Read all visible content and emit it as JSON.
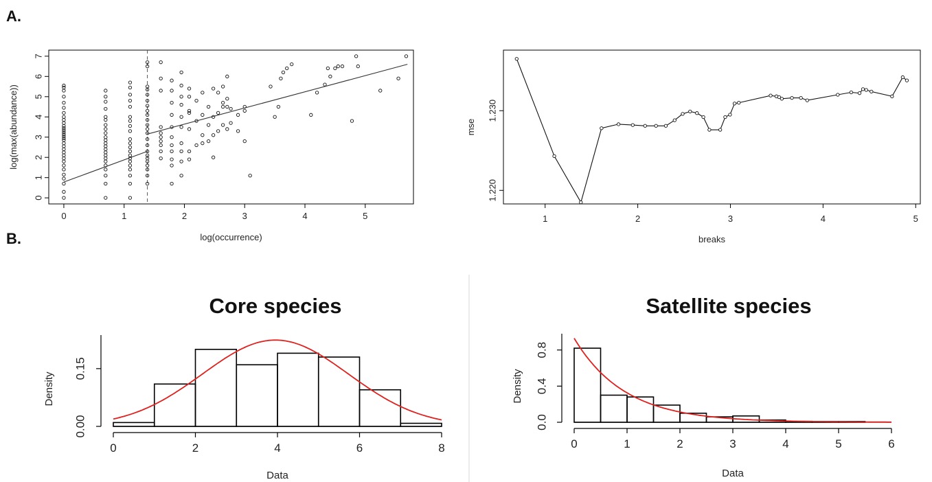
{
  "figure": {
    "label_a": "A.",
    "label_b": "B."
  },
  "chart_data": [
    {
      "id": "scatter",
      "type": "scatter",
      "title": "",
      "xlabel": "log(occurrence)",
      "ylabel": "log(max(abundance))",
      "xlim": [
        -0.25,
        5.8
      ],
      "ylim": [
        -0.3,
        7.3
      ],
      "xticks": [
        0,
        1,
        2,
        3,
        4,
        5
      ],
      "yticks": [
        0,
        1,
        2,
        3,
        4,
        5,
        6,
        7
      ],
      "breakpoint": 1.386,
      "fit_left": {
        "x": [
          0,
          1.386
        ],
        "y": [
          0.78,
          2.3
        ]
      },
      "fit_right": {
        "x": [
          1.386,
          5.7
        ],
        "y": [
          3.15,
          6.6
        ]
      },
      "points": [
        [
          0,
          0
        ],
        [
          0,
          0.3
        ],
        [
          0,
          0.7
        ],
        [
          0,
          0.95
        ],
        [
          0,
          1.15
        ],
        [
          0,
          1.4
        ],
        [
          0,
          1.6
        ],
        [
          0,
          1.8
        ],
        [
          0,
          1.95
        ],
        [
          0,
          2.1
        ],
        [
          0,
          2.25
        ],
        [
          0,
          2.4
        ],
        [
          0,
          2.55
        ],
        [
          0,
          2.7
        ],
        [
          0,
          2.85
        ],
        [
          0,
          2.95
        ],
        [
          0,
          3.05
        ],
        [
          0,
          3.15
        ],
        [
          0,
          3.25
        ],
        [
          0,
          3.35
        ],
        [
          0,
          3.45
        ],
        [
          0,
          3.55
        ],
        [
          0,
          3.7
        ],
        [
          0,
          3.85
        ],
        [
          0,
          4.0
        ],
        [
          0,
          4.2
        ],
        [
          0,
          4.45
        ],
        [
          0,
          4.7
        ],
        [
          0,
          5.0
        ],
        [
          0,
          5.3
        ],
        [
          0,
          5.45
        ],
        [
          0,
          5.55
        ],
        [
          0.693,
          0
        ],
        [
          0.693,
          0.7
        ],
        [
          0.693,
          1.1
        ],
        [
          0.693,
          1.4
        ],
        [
          0.693,
          1.6
        ],
        [
          0.693,
          1.8
        ],
        [
          0.693,
          1.95
        ],
        [
          0.693,
          2.1
        ],
        [
          0.693,
          2.25
        ],
        [
          0.693,
          2.4
        ],
        [
          0.693,
          2.55
        ],
        [
          0.693,
          2.7
        ],
        [
          0.693,
          2.85
        ],
        [
          0.693,
          3.0
        ],
        [
          0.693,
          3.2
        ],
        [
          0.693,
          3.4
        ],
        [
          0.693,
          3.6
        ],
        [
          0.693,
          3.85
        ],
        [
          0.693,
          4.0
        ],
        [
          0.693,
          4.4
        ],
        [
          0.693,
          4.75
        ],
        [
          0.693,
          5.0
        ],
        [
          0.693,
          5.3
        ],
        [
          1.099,
          0
        ],
        [
          1.099,
          0.7
        ],
        [
          1.099,
          1.1
        ],
        [
          1.099,
          1.4
        ],
        [
          1.099,
          1.6
        ],
        [
          1.099,
          1.8
        ],
        [
          1.099,
          1.95
        ],
        [
          1.099,
          2.1
        ],
        [
          1.099,
          2.3
        ],
        [
          1.099,
          2.5
        ],
        [
          1.099,
          2.7
        ],
        [
          1.099,
          2.9
        ],
        [
          1.099,
          3.3
        ],
        [
          1.099,
          3.55
        ],
        [
          1.099,
          3.8
        ],
        [
          1.099,
          4.0
        ],
        [
          1.099,
          4.5
        ],
        [
          1.099,
          4.8
        ],
        [
          1.099,
          5.1
        ],
        [
          1.099,
          5.45
        ],
        [
          1.099,
          5.7
        ],
        [
          1.386,
          0.7
        ],
        [
          1.386,
          1.1
        ],
        [
          1.386,
          1.4
        ],
        [
          1.386,
          1.6
        ],
        [
          1.386,
          1.8
        ],
        [
          1.386,
          1.95
        ],
        [
          1.386,
          2.1
        ],
        [
          1.386,
          2.3
        ],
        [
          1.386,
          2.6
        ],
        [
          1.386,
          2.9
        ],
        [
          1.386,
          3.2
        ],
        [
          1.386,
          3.4
        ],
        [
          1.386,
          3.6
        ],
        [
          1.386,
          3.85
        ],
        [
          1.386,
          4.1
        ],
        [
          1.386,
          4.3
        ],
        [
          1.386,
          4.55
        ],
        [
          1.386,
          4.8
        ],
        [
          1.386,
          5.1
        ],
        [
          1.386,
          5.35
        ],
        [
          1.386,
          5.5
        ],
        [
          1.386,
          6.5
        ],
        [
          1.386,
          6.7
        ],
        [
          1.609,
          1.95
        ],
        [
          1.609,
          2.3
        ],
        [
          1.609,
          2.6
        ],
        [
          1.609,
          2.8
        ],
        [
          1.609,
          3.0
        ],
        [
          1.609,
          3.2
        ],
        [
          1.609,
          3.5
        ],
        [
          1.609,
          5.3
        ],
        [
          1.609,
          5.9
        ],
        [
          1.609,
          6.7
        ],
        [
          1.79,
          0.7
        ],
        [
          1.79,
          1.6
        ],
        [
          1.79,
          1.9
        ],
        [
          1.79,
          2.3
        ],
        [
          1.79,
          2.6
        ],
        [
          1.79,
          3.0
        ],
        [
          1.79,
          3.5
        ],
        [
          1.79,
          4.1
        ],
        [
          1.79,
          4.7
        ],
        [
          1.79,
          5.3
        ],
        [
          1.79,
          5.8
        ],
        [
          1.95,
          1.1
        ],
        [
          1.95,
          1.8
        ],
        [
          1.95,
          2.3
        ],
        [
          1.95,
          2.7
        ],
        [
          1.95,
          3.5
        ],
        [
          1.95,
          4.0
        ],
        [
          1.95,
          4.6
        ],
        [
          1.95,
          5.0
        ],
        [
          1.95,
          5.55
        ],
        [
          1.95,
          6.2
        ],
        [
          2.08,
          1.9
        ],
        [
          2.08,
          2.3
        ],
        [
          2.08,
          3.4
        ],
        [
          2.08,
          4.2
        ],
        [
          2.08,
          4.3
        ],
        [
          2.08,
          5.0
        ],
        [
          2.08,
          5.4
        ],
        [
          2.2,
          2.6
        ],
        [
          2.2,
          3.8
        ],
        [
          2.2,
          4.8
        ],
        [
          2.3,
          2.7
        ],
        [
          2.3,
          3.1
        ],
        [
          2.3,
          4.1
        ],
        [
          2.3,
          5.2
        ],
        [
          2.4,
          2.8
        ],
        [
          2.4,
          3.6
        ],
        [
          2.4,
          4.5
        ],
        [
          2.48,
          2.0
        ],
        [
          2.48,
          3.1
        ],
        [
          2.48,
          4.0
        ],
        [
          2.48,
          5.4
        ],
        [
          2.56,
          3.3
        ],
        [
          2.56,
          4.2
        ],
        [
          2.56,
          5.2
        ],
        [
          2.64,
          3.6
        ],
        [
          2.64,
          4.5
        ],
        [
          2.64,
          4.7
        ],
        [
          2.64,
          5.5
        ],
        [
          2.71,
          3.4
        ],
        [
          2.71,
          4.5
        ],
        [
          2.71,
          4.9
        ],
        [
          2.71,
          6.0
        ],
        [
          2.77,
          3.7
        ],
        [
          2.77,
          4.4
        ],
        [
          2.89,
          3.3
        ],
        [
          2.89,
          4.1
        ],
        [
          3.0,
          2.8
        ],
        [
          3.0,
          4.3
        ],
        [
          3.0,
          4.5
        ],
        [
          3.09,
          1.1
        ],
        [
          3.43,
          5.5
        ],
        [
          3.5,
          4.0
        ],
        [
          3.56,
          4.5
        ],
        [
          3.6,
          5.9
        ],
        [
          3.64,
          6.2
        ],
        [
          3.7,
          6.4
        ],
        [
          3.78,
          6.6
        ],
        [
          4.1,
          4.1
        ],
        [
          4.2,
          5.2
        ],
        [
          4.33,
          5.6
        ],
        [
          4.38,
          6.4
        ],
        [
          4.42,
          6.0
        ],
        [
          4.5,
          6.4
        ],
        [
          4.55,
          6.5
        ],
        [
          4.62,
          6.5
        ],
        [
          4.78,
          3.8
        ],
        [
          4.85,
          7.0
        ],
        [
          4.88,
          6.5
        ],
        [
          5.25,
          5.3
        ],
        [
          5.55,
          5.9
        ],
        [
          5.68,
          7.0
        ]
      ]
    },
    {
      "id": "mse",
      "type": "line",
      "title": "",
      "xlabel": "breaks",
      "ylabel": "mse",
      "xlim": [
        0.55,
        5.05
      ],
      "ylim": [
        1.2183,
        1.2376
      ],
      "xticks": [
        1,
        2,
        3,
        4,
        5
      ],
      "yticks": [
        1.22,
        1.23
      ],
      "ytick_labels": [
        "1.220",
        "1.230"
      ],
      "x": [
        0.693,
        1.099,
        1.386,
        1.609,
        1.792,
        1.946,
        2.079,
        2.197,
        2.303,
        2.398,
        2.485,
        2.565,
        2.639,
        2.708,
        2.773,
        2.89,
        2.944,
        2.996,
        3.045,
        3.091,
        3.434,
        3.497,
        3.526,
        3.555,
        3.664,
        3.761,
        3.829,
        4.159,
        4.304,
        4.394,
        4.431,
        4.466,
        4.522,
        4.745,
        4.86,
        4.905
      ],
      "y": [
        1.2365,
        1.2243,
        1.2185,
        1.2278,
        1.2283,
        1.2282,
        1.2281,
        1.2281,
        1.2281,
        1.2288,
        1.2296,
        1.2299,
        1.2297,
        1.2292,
        1.2276,
        1.2276,
        1.2292,
        1.2295,
        1.2309,
        1.231,
        1.2319,
        1.2318,
        1.2317,
        1.2315,
        1.2316,
        1.2316,
        1.2313,
        1.232,
        1.2323,
        1.2322,
        1.2327,
        1.2326,
        1.2324,
        1.2318,
        1.2342,
        1.2338
      ]
    },
    {
      "id": "core",
      "type": "bar",
      "title": "Core species",
      "xlabel": "Data",
      "ylabel": "Density",
      "xlim": [
        0,
        8
      ],
      "ylim": [
        0,
        0.23
      ],
      "xticks": [
        0,
        2,
        4,
        6,
        8
      ],
      "yticks": [
        0,
        0.15
      ],
      "ytick_labels": [
        "0.00",
        "0.15"
      ],
      "bins": [
        [
          0,
          1,
          0.01
        ],
        [
          1,
          2,
          0.11
        ],
        [
          2,
          3,
          0.2
        ],
        [
          3,
          4,
          0.16
        ],
        [
          4,
          5,
          0.19
        ],
        [
          5,
          6,
          0.18
        ],
        [
          6,
          7,
          0.095
        ],
        [
          7,
          8,
          0.008
        ]
      ],
      "curve": {
        "kind": "normal",
        "mean": 3.95,
        "sd": 1.78
      }
    },
    {
      "id": "satellite",
      "type": "bar",
      "title": "Satellite species",
      "xlabel": "Data",
      "ylabel": "Density",
      "xlim": [
        0,
        6
      ],
      "ylim": [
        0,
        0.95
      ],
      "xticks": [
        0,
        1,
        2,
        3,
        4,
        5,
        6
      ],
      "yticks": [
        0,
        0.4,
        0.8
      ],
      "ytick_labels": [
        "0.0",
        "0.4",
        "0.8"
      ],
      "bins": [
        [
          0,
          0.5,
          0.82
        ],
        [
          0.5,
          1,
          0.3
        ],
        [
          1,
          1.5,
          0.28
        ],
        [
          1.5,
          2,
          0.19
        ],
        [
          2,
          2.5,
          0.1
        ],
        [
          2.5,
          3,
          0.06
        ],
        [
          3,
          3.5,
          0.07
        ],
        [
          3.5,
          4,
          0.025
        ],
        [
          4,
          4.5,
          0.01
        ],
        [
          4.5,
          5,
          0.008
        ],
        [
          5,
          5.5,
          0.008
        ]
      ],
      "curve": {
        "kind": "exp",
        "a": 0.93,
        "rate": 1.05
      }
    }
  ]
}
